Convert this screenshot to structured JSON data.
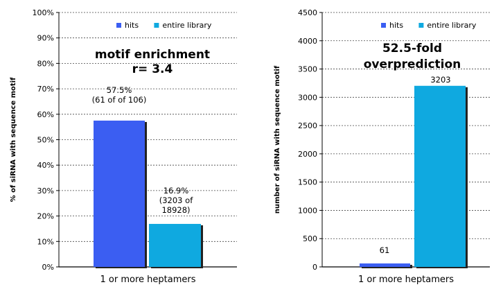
{
  "chart_data": [
    {
      "type": "bar",
      "categories": [
        "1 or more heptamers"
      ],
      "ylabel": "% of siRNA with sequence motif",
      "ylim": [
        0,
        100
      ],
      "yticks": [
        "0%",
        "10%",
        "20%",
        "30%",
        "40%",
        "50%",
        "60%",
        "70%",
        "80%",
        "90%",
        "100%"
      ],
      "grid": true,
      "legend_position": "top-right",
      "colors": {
        "hits": "#3b5ef2",
        "entire library": "#0fa9e0"
      },
      "series": [
        {
          "name": "hits",
          "values": [
            57.5
          ]
        },
        {
          "name": "entire library",
          "values": [
            16.9
          ]
        }
      ],
      "data_labels": [
        [
          "57.5%",
          "(61 of of 106)"
        ],
        [
          "16.9%",
          "(3203 of",
          "18928)"
        ]
      ],
      "annotation": [
        "motif enrichment",
        "r= 3.4"
      ]
    },
    {
      "type": "bar",
      "categories": [
        "1 or more heptamers"
      ],
      "ylabel": "number of siRNA with sequence motif",
      "ylim": [
        0,
        4500
      ],
      "yticks": [
        "0",
        "500",
        "1000",
        "1500",
        "2000",
        "2500",
        "3000",
        "3500",
        "4000",
        "4500"
      ],
      "grid": true,
      "legend_position": "top-right",
      "colors": {
        "hits": "#3b5ef2",
        "entire library": "#0fa9e0"
      },
      "series": [
        {
          "name": "hits",
          "values": [
            61
          ]
        },
        {
          "name": "entire library",
          "values": [
            3203
          ]
        }
      ],
      "data_labels": [
        [
          "61"
        ],
        [
          "3203"
        ]
      ],
      "annotation": [
        "52.5-fold",
        "overprediction"
      ]
    }
  ]
}
